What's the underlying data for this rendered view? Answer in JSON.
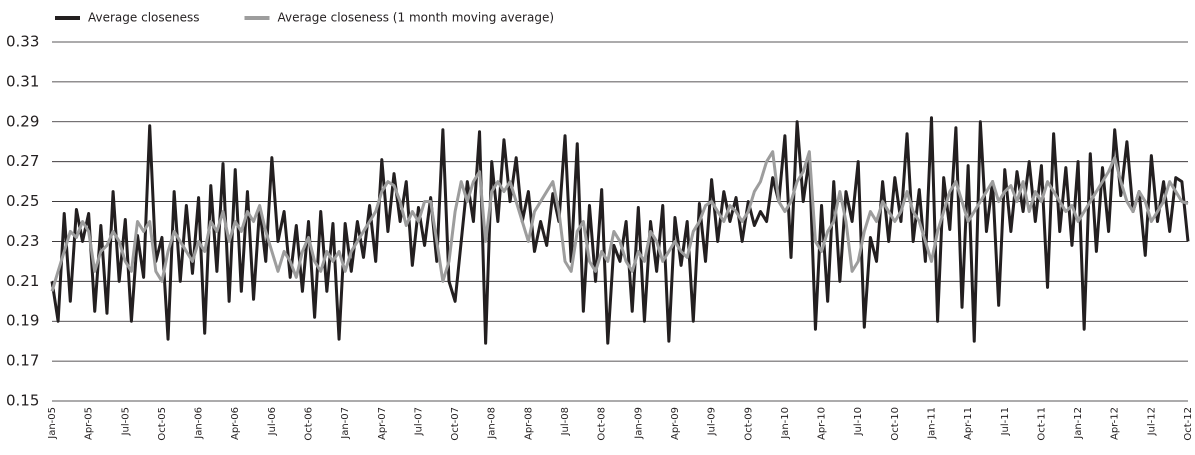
{
  "chart_data": {
    "type": "line",
    "categories": [
      "Jan-05",
      null,
      null,
      null,
      null,
      null,
      "Apr-05",
      null,
      null,
      null,
      null,
      null,
      "Jul-05",
      null,
      null,
      null,
      null,
      null,
      "Oct-05",
      null,
      null,
      null,
      null,
      null,
      "Jan-06",
      null,
      null,
      null,
      null,
      null,
      "Apr-06",
      null,
      null,
      null,
      null,
      null,
      "Jul-06",
      null,
      null,
      null,
      null,
      null,
      "Oct-06",
      null,
      null,
      null,
      null,
      null,
      "Jan-07",
      null,
      null,
      null,
      null,
      null,
      "Apr-07",
      null,
      null,
      null,
      null,
      null,
      "Jul-07",
      null,
      null,
      null,
      null,
      null,
      "Oct-07",
      null,
      null,
      null,
      null,
      null,
      "Jan-08",
      null,
      null,
      null,
      null,
      null,
      "Apr-08",
      null,
      null,
      null,
      null,
      null,
      "Jul-08",
      null,
      null,
      null,
      null,
      null,
      "Oct-08",
      null,
      null,
      null,
      null,
      null,
      "Jan-09",
      null,
      null,
      null,
      null,
      null,
      "Apr-09",
      null,
      null,
      null,
      null,
      null,
      "Jul-09",
      null,
      null,
      null,
      null,
      null,
      "Oct-09",
      null,
      null,
      null,
      null,
      null,
      "Jan-10",
      null,
      null,
      null,
      null,
      null,
      "Apr-10",
      null,
      null,
      null,
      null,
      null,
      "Jul-10",
      null,
      null,
      null,
      null,
      null,
      "Oct-10",
      null,
      null,
      null,
      null,
      null,
      "Jan-11",
      null,
      null,
      null,
      null,
      null,
      "Apr-11",
      null,
      null,
      null,
      null,
      null,
      "Jul-11",
      null,
      null,
      null,
      null,
      null,
      "Oct-11",
      null,
      null,
      null,
      null,
      null,
      "Jan-12",
      null,
      null,
      null,
      null,
      null,
      "Apr-12",
      null,
      null,
      null,
      null,
      null,
      "Jul-12",
      null,
      null,
      null,
      null,
      null,
      "Oct-12"
    ],
    "series": [
      {
        "name": "Average closeness",
        "color": "#231f20",
        "values": [
          0.21,
          0.19,
          0.244,
          0.2,
          0.246,
          0.23,
          0.244,
          0.195,
          0.238,
          0.194,
          0.255,
          0.21,
          0.241,
          0.19,
          0.233,
          0.212,
          0.288,
          0.22,
          0.232,
          0.181,
          0.255,
          0.21,
          0.248,
          0.214,
          0.252,
          0.184,
          0.258,
          0.215,
          0.269,
          0.2,
          0.266,
          0.205,
          0.255,
          0.201,
          0.247,
          0.22,
          0.272,
          0.23,
          0.245,
          0.212,
          0.238,
          0.205,
          0.24,
          0.192,
          0.245,
          0.205,
          0.239,
          0.181,
          0.239,
          0.215,
          0.24,
          0.222,
          0.248,
          0.22,
          0.271,
          0.235,
          0.264,
          0.24,
          0.26,
          0.218,
          0.247,
          0.228,
          0.252,
          0.22,
          0.286,
          0.21,
          0.2,
          0.23,
          0.26,
          0.24,
          0.285,
          0.179,
          0.27,
          0.24,
          0.281,
          0.25,
          0.272,
          0.24,
          0.255,
          0.225,
          0.24,
          0.228,
          0.254,
          0.24,
          0.283,
          0.22,
          0.279,
          0.195,
          0.248,
          0.21,
          0.256,
          0.179,
          0.228,
          0.22,
          0.24,
          0.195,
          0.247,
          0.19,
          0.24,
          0.215,
          0.248,
          0.18,
          0.242,
          0.218,
          0.24,
          0.19,
          0.249,
          0.22,
          0.261,
          0.23,
          0.255,
          0.24,
          0.252,
          0.23,
          0.25,
          0.238,
          0.245,
          0.24,
          0.262,
          0.25,
          0.283,
          0.222,
          0.29,
          0.25,
          0.272,
          0.186,
          0.248,
          0.2,
          0.26,
          0.21,
          0.255,
          0.24,
          0.27,
          0.187,
          0.232,
          0.22,
          0.26,
          0.23,
          0.262,
          0.24,
          0.284,
          0.23,
          0.256,
          0.22,
          0.292,
          0.19,
          0.262,
          0.236,
          0.287,
          0.197,
          0.268,
          0.18,
          0.29,
          0.235,
          0.26,
          0.198,
          0.266,
          0.235,
          0.265,
          0.245,
          0.27,
          0.24,
          0.268,
          0.207,
          0.284,
          0.235,
          0.267,
          0.228,
          0.27,
          0.186,
          0.274,
          0.225,
          0.267,
          0.235,
          0.286,
          0.253,
          0.28,
          0.245,
          0.255,
          0.223,
          0.273,
          0.24,
          0.26,
          0.235,
          0.262,
          0.26,
          0.23
        ]
      },
      {
        "name": "Average closeness (1 month moving average)",
        "color": "#9d9d9d",
        "values": [
          0.205,
          0.215,
          0.225,
          0.235,
          0.232,
          0.24,
          0.235,
          0.215,
          0.225,
          0.228,
          0.235,
          0.23,
          0.22,
          0.215,
          0.24,
          0.235,
          0.24,
          0.215,
          0.21,
          0.225,
          0.235,
          0.23,
          0.225,
          0.22,
          0.23,
          0.225,
          0.24,
          0.235,
          0.245,
          0.23,
          0.24,
          0.235,
          0.245,
          0.24,
          0.248,
          0.235,
          0.225,
          0.215,
          0.225,
          0.22,
          0.212,
          0.225,
          0.232,
          0.22,
          0.215,
          0.225,
          0.22,
          0.225,
          0.215,
          0.225,
          0.23,
          0.235,
          0.24,
          0.245,
          0.255,
          0.26,
          0.258,
          0.25,
          0.238,
          0.245,
          0.24,
          0.25,
          0.25,
          0.23,
          0.21,
          0.22,
          0.245,
          0.26,
          0.25,
          0.26,
          0.265,
          0.23,
          0.255,
          0.26,
          0.255,
          0.26,
          0.25,
          0.24,
          0.23,
          0.245,
          0.25,
          0.255,
          0.26,
          0.245,
          0.22,
          0.215,
          0.235,
          0.24,
          0.22,
          0.215,
          0.225,
          0.22,
          0.235,
          0.23,
          0.22,
          0.215,
          0.225,
          0.22,
          0.235,
          0.23,
          0.22,
          0.225,
          0.23,
          0.225,
          0.222,
          0.235,
          0.24,
          0.248,
          0.25,
          0.245,
          0.24,
          0.248,
          0.245,
          0.24,
          0.245,
          0.255,
          0.26,
          0.27,
          0.275,
          0.25,
          0.245,
          0.25,
          0.26,
          0.265,
          0.275,
          0.23,
          0.225,
          0.235,
          0.24,
          0.255,
          0.24,
          0.215,
          0.22,
          0.235,
          0.245,
          0.24,
          0.25,
          0.245,
          0.24,
          0.245,
          0.255,
          0.245,
          0.24,
          0.23,
          0.22,
          0.235,
          0.245,
          0.255,
          0.26,
          0.25,
          0.24,
          0.245,
          0.25,
          0.255,
          0.26,
          0.25,
          0.255,
          0.258,
          0.25,
          0.26,
          0.245,
          0.255,
          0.25,
          0.26,
          0.255,
          0.25,
          0.245,
          0.248,
          0.24,
          0.245,
          0.25,
          0.255,
          0.26,
          0.265,
          0.272,
          0.26,
          0.25,
          0.245,
          0.255,
          0.25,
          0.24,
          0.245,
          0.25,
          0.26,
          0.255,
          0.25,
          0.249
        ]
      }
    ],
    "ylim": [
      0.15,
      0.33
    ],
    "yticks": [
      0.15,
      0.17,
      0.19,
      0.21,
      0.23,
      0.25,
      0.27,
      0.29,
      0.31,
      0.33
    ],
    "grid": true,
    "legend": "top-left"
  }
}
